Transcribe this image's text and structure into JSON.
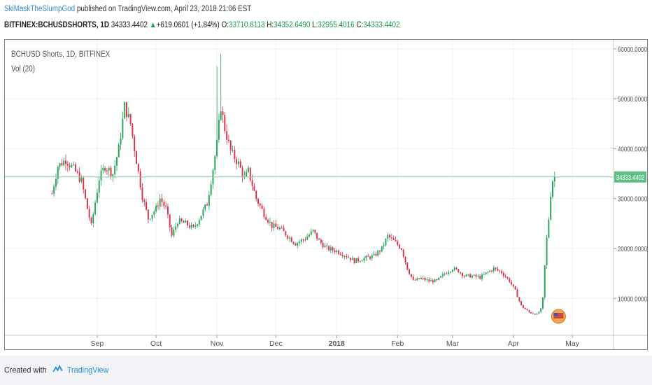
{
  "header": {
    "author": "SkiMaskTheSlumpGod",
    "published_text": "published on TradingView.com, April 23, 2018 21:06 EST"
  },
  "symbol_line": {
    "symbol": "BITFINEX:BCHUSDSHORTS, 1D",
    "last": "34333.4402",
    "change": "+619.0601 (+1.84%)",
    "o_label": "O:",
    "o_value": "33710.8113",
    "h_label": "H:",
    "h_value": "34352.6490",
    "l_label": "L:",
    "l_value": "32955.4016",
    "c_label": "C:",
    "c_value": "34333.4402"
  },
  "legend": {
    "title": "BCHUSD Shorts, 1D, BITFINEX",
    "indicator": "Vol (20)"
  },
  "footer": {
    "created_with": "Created with",
    "brand": "TradingView"
  },
  "colors": {
    "up": "#26a65b",
    "down": "#d9344a",
    "grid": "#eef0f3",
    "price_line": "#7fd0a2",
    "price_tag_bg": "#5fbf86",
    "axis_text": "#555555",
    "border": "#808080"
  },
  "chart_data": {
    "type": "candlestick",
    "title": "BCHUSD Shorts, 1D, BITFINEX",
    "last_price_label": "34333.4402",
    "y_ticks": [
      10000,
      20000,
      30000,
      40000,
      50000,
      60000
    ],
    "y_tick_labels": [
      "10000.0000",
      "20000.0000",
      "30000.0000",
      "40000.0000",
      "50000.0000",
      "60000.0000"
    ],
    "x_ticks": [
      {
        "label": "Sep",
        "date": "2017-09-01"
      },
      {
        "label": "Oct",
        "date": "2017-10-01"
      },
      {
        "label": "Nov",
        "date": "2017-11-01"
      },
      {
        "label": "Dec",
        "date": "2017-12-01"
      },
      {
        "label": "2018",
        "date": "2018-01-01",
        "bold": true
      },
      {
        "label": "Feb",
        "date": "2018-02-01"
      },
      {
        "label": "Mar",
        "date": "2018-03-01"
      },
      {
        "label": "Apr",
        "date": "2018-04-01"
      },
      {
        "label": "May",
        "date": "2018-05-01"
      }
    ],
    "ylim": [
      2600,
      61800
    ],
    "xlim": [
      "2017-07-16",
      "2018-05-22"
    ],
    "price_anchors": [
      [
        "2017-08-09",
        31000
      ],
      [
        "2017-08-12",
        36500
      ],
      [
        "2017-08-16",
        37800
      ],
      [
        "2017-08-20",
        36000
      ],
      [
        "2017-08-24",
        33500
      ],
      [
        "2017-08-27",
        28000
      ],
      [
        "2017-08-29",
        24500
      ],
      [
        "2017-09-02",
        34000
      ],
      [
        "2017-09-05",
        36500
      ],
      [
        "2017-09-09",
        35000
      ],
      [
        "2017-09-12",
        40000
      ],
      [
        "2017-09-15",
        48500
      ],
      [
        "2017-09-18",
        45000
      ],
      [
        "2017-09-20",
        40000
      ],
      [
        "2017-09-24",
        30500
      ],
      [
        "2017-09-27",
        26000
      ],
      [
        "2017-10-01",
        28000
      ],
      [
        "2017-10-03",
        30000
      ],
      [
        "2017-10-06",
        28000
      ],
      [
        "2017-10-09",
        22500
      ],
      [
        "2017-10-12",
        25500
      ],
      [
        "2017-10-16",
        25000
      ],
      [
        "2017-10-20",
        24000
      ],
      [
        "2017-10-23",
        26000
      ],
      [
        "2017-10-27",
        29000
      ],
      [
        "2017-10-30",
        36000
      ],
      [
        "2017-11-01",
        41000
      ],
      [
        "2017-11-03",
        48500
      ],
      [
        "2017-11-05",
        44000
      ],
      [
        "2017-11-08",
        39500
      ],
      [
        "2017-11-12",
        37000
      ],
      [
        "2017-11-15",
        34000
      ],
      [
        "2017-11-17",
        35500
      ],
      [
        "2017-11-21",
        30000
      ],
      [
        "2017-11-25",
        27000
      ],
      [
        "2017-11-29",
        24500
      ],
      [
        "2017-12-03",
        24000
      ],
      [
        "2017-12-07",
        22500
      ],
      [
        "2017-12-11",
        21000
      ],
      [
        "2017-12-16",
        22000
      ],
      [
        "2017-12-20",
        23500
      ],
      [
        "2017-12-23",
        21500
      ],
      [
        "2017-12-27",
        20000
      ],
      [
        "2018-01-01",
        19500
      ],
      [
        "2018-01-06",
        18500
      ],
      [
        "2018-01-10",
        17500
      ],
      [
        "2018-01-15",
        18000
      ],
      [
        "2018-01-20",
        18500
      ],
      [
        "2018-01-24",
        20000
      ],
      [
        "2018-01-27",
        22500
      ],
      [
        "2018-01-30",
        21500
      ],
      [
        "2018-02-03",
        20000
      ],
      [
        "2018-02-06",
        16000
      ],
      [
        "2018-02-09",
        13500
      ],
      [
        "2018-02-13",
        14000
      ],
      [
        "2018-02-17",
        13500
      ],
      [
        "2018-02-21",
        13500
      ],
      [
        "2018-02-25",
        15000
      ],
      [
        "2018-03-01",
        16000
      ],
      [
        "2018-03-04",
        15500
      ],
      [
        "2018-03-07",
        14500
      ],
      [
        "2018-03-11",
        14500
      ],
      [
        "2018-03-15",
        14200
      ],
      [
        "2018-03-18",
        15000
      ],
      [
        "2018-03-22",
        16000
      ],
      [
        "2018-03-26",
        15200
      ],
      [
        "2018-03-30",
        13500
      ],
      [
        "2018-04-02",
        11500
      ],
      [
        "2018-04-05",
        8500
      ],
      [
        "2018-04-09",
        7200
      ],
      [
        "2018-04-13",
        6800
      ],
      [
        "2018-04-15",
        7800
      ],
      [
        "2018-04-16",
        10000
      ],
      [
        "2018-04-17",
        16500
      ],
      [
        "2018-04-18",
        22000
      ],
      [
        "2018-04-19",
        26000
      ],
      [
        "2018-04-20",
        31000
      ],
      [
        "2018-04-21",
        33700
      ],
      [
        "2018-04-22",
        34333
      ]
    ],
    "notable_highs": [
      {
        "date": "2017-11-03",
        "high": 59000
      },
      {
        "date": "2017-11-01",
        "high": 56500
      },
      {
        "date": "2017-09-15",
        "high": 49500
      }
    ]
  }
}
